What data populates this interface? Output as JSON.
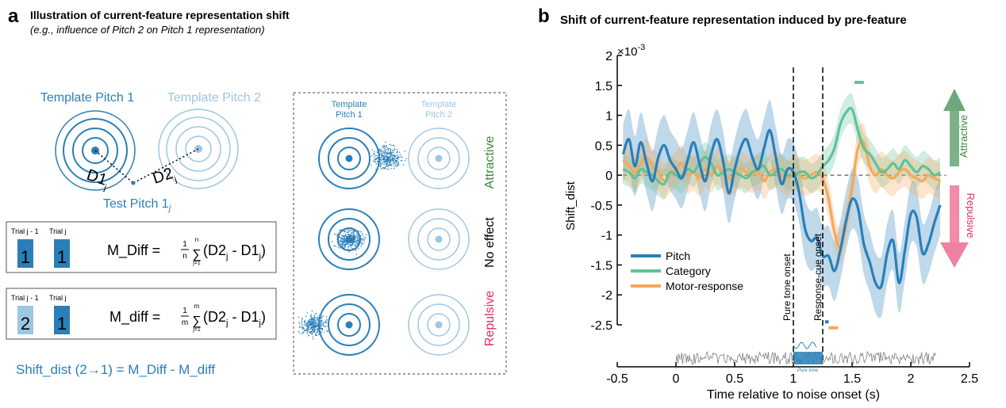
{
  "panel_a": {
    "letter": "a",
    "title": "Illustration of current-feature representation shift",
    "subtitle": "(e.g., influence of Pitch 2 on Pitch 1 representation)",
    "template_pitch_1": "Template Pitch 1",
    "template_pitch_2": "Template Pitch 2",
    "d1_label": "D1",
    "d1_sub": "j",
    "d2_label": "D2",
    "d2_sub": "j",
    "test_pitch_label": "Test Pitch 1",
    "test_pitch_sub": "j",
    "box1": {
      "trial_prev": "Trial j - 1",
      "trial_curr": "Trial j",
      "prev_value": "1",
      "curr_value": "1",
      "lhs": "M_Diff =",
      "frac_num": "1",
      "frac_den": "n",
      "sum_top": "n",
      "sum_bottom": "j=1",
      "body": "(D2",
      "sub_a": "j",
      "minus": " - D1",
      "sub_b": "j",
      "close": ")"
    },
    "box2": {
      "trial_prev": "Trial j - 1",
      "trial_curr": "Trial j",
      "prev_value": "2",
      "curr_value": "1",
      "lhs": "M_diff =",
      "frac_num": "1",
      "frac_den": "m",
      "sum_top": "m",
      "sum_bottom": "j=1",
      "body": "(D2",
      "sub_a": "j",
      "minus": " - D1",
      "sub_b": "j",
      "close": ")"
    },
    "shift_formula": "Shift_dist (2→1) = M_Diff - M_diff",
    "dashed_box": {
      "template_pitch_1": [
        "Template",
        "Pitch 1"
      ],
      "template_pitch_2": [
        "Template",
        "Pitch 2"
      ],
      "attractive": "Attractive",
      "no_effect": "No effect",
      "repulsive": "Repulsive"
    }
  },
  "panel_b": {
    "letter": "b",
    "title": "Shift of current-feature representation induced by pre-feature",
    "scale_label": "×10",
    "scale_exp": "-3",
    "attractive": "Attractive",
    "repulsive": "Repulsive",
    "pure_tone_onset": "Pure tone onset",
    "response_cue_onset": "Response-cue onset",
    "pure_tone_small": "Pure tone"
  },
  "colors": {
    "pitch": "#2a7fb8",
    "pitch_light": "#9cc7e3",
    "category": "#5fc29a",
    "motor": "#f6a85a",
    "attractive": "#3a8a3a",
    "repulsive": "#e0305a",
    "noise": "#808080"
  },
  "chart_data": {
    "type": "line",
    "title": "Shift of current-feature representation induced by pre-feature",
    "xlabel": "Time relative to noise onset (s)",
    "ylabel": "Shift_dist",
    "xlim": [
      -0.5,
      2.5
    ],
    "ylim": [
      -2.5,
      2.0
    ],
    "y_scale_note": "×10^-3",
    "x_ticks": [
      "-0.5",
      "0",
      "0.5",
      "1",
      "1.5",
      "2",
      "2.5"
    ],
    "y_ticks": [
      "2",
      "1.5",
      "1",
      "0.5",
      "0",
      "-0.5",
      "-1",
      "-1.5",
      "-2",
      "-2.5"
    ],
    "grid": false,
    "legend_position": "bottom-left",
    "vlines": [
      1.0,
      1.25
    ],
    "x": [
      -0.45,
      -0.4,
      -0.35,
      -0.3,
      -0.25,
      -0.2,
      -0.15,
      -0.1,
      -0.05,
      0,
      0.05,
      0.1,
      0.15,
      0.2,
      0.25,
      0.3,
      0.35,
      0.4,
      0.45,
      0.5,
      0.55,
      0.6,
      0.65,
      0.7,
      0.75,
      0.8,
      0.85,
      0.9,
      0.95,
      1.0,
      1.05,
      1.1,
      1.15,
      1.2,
      1.25,
      1.3,
      1.35,
      1.4,
      1.45,
      1.5,
      1.55,
      1.6,
      1.65,
      1.7,
      1.75,
      1.8,
      1.85,
      1.9,
      1.95,
      2.0,
      2.05,
      2.1,
      2.15,
      2.2,
      2.25
    ],
    "series": [
      {
        "name": "Pitch",
        "color": "#2a7fb8",
        "values": [
          0.35,
          0.6,
          0.15,
          0.55,
          0.2,
          -0.1,
          0.3,
          0.5,
          0.25,
          0.1,
          -0.05,
          0.25,
          0.55,
          0.2,
          -0.1,
          0.35,
          0.6,
          0.25,
          -0.3,
          0.1,
          0.45,
          0.6,
          0.3,
          0.1,
          0.45,
          0.75,
          0.3,
          -0.15,
          0.1,
          0.05,
          -0.3,
          -0.9,
          -1.1,
          -1.05,
          -1.35,
          -1.35,
          -1.6,
          -1.25,
          -0.75,
          -0.4,
          -0.55,
          -1.15,
          -1.45,
          -1.8,
          -1.85,
          -1.3,
          -1.1,
          -1.8,
          -1.25,
          -0.65,
          -0.7,
          -1.3,
          -1.15,
          -0.8,
          -0.5
        ],
        "ci_half_width": 0.5
      },
      {
        "name": "Category",
        "color": "#5fc29a",
        "values": [
          0.1,
          0.05,
          -0.05,
          0.1,
          0.05,
          0.0,
          -0.1,
          -0.15,
          0.05,
          0.0,
          -0.05,
          0.1,
          0.05,
          0.2,
          0.3,
          0.2,
          0.0,
          0.05,
          0.1,
          0.05,
          0.0,
          -0.05,
          0.05,
          0.1,
          0.15,
          0.0,
          0.05,
          0.1,
          0.0,
          0.0,
          0.05,
          0.05,
          -0.05,
          0.0,
          0.15,
          0.25,
          0.45,
          0.85,
          1.05,
          1.1,
          0.75,
          0.45,
          0.35,
          0.2,
          0.05,
          0.1,
          0.2,
          0.1,
          0.25,
          0.15,
          0.05,
          0.15,
          0.1,
          0.0,
          0.05
        ],
        "ci_half_width": 0.25
      },
      {
        "name": "Motor-response",
        "color": "#f6a85a",
        "values": [
          0.25,
          0.15,
          0.05,
          0.2,
          0.3,
          0.15,
          0.05,
          -0.1,
          0.0,
          0.1,
          0.2,
          0.0,
          0.05,
          -0.05,
          0.1,
          0.0,
          0.15,
          0.05,
          -0.05,
          0.0,
          0.1,
          0.05,
          0.0,
          0.05,
          -0.1,
          0.05,
          0.1,
          0.0,
          -0.05,
          0.05,
          0.0,
          -0.05,
          0.0,
          0.05,
          -0.05,
          -0.4,
          -0.95,
          -1.2,
          -0.8,
          -0.2,
          0.45,
          0.55,
          0.15,
          0.0,
          0.1,
          0.0,
          -0.05,
          0.05,
          0.1,
          0.0,
          -0.05,
          -0.1,
          0.0,
          -0.05,
          -0.1
        ],
        "ci_half_width": 0.3
      }
    ],
    "significance_bars": [
      {
        "series": "Category",
        "x_start": 1.52,
        "x_end": 1.6,
        "y": 1.55
      },
      {
        "series": "Pitch",
        "x_start": 1.27,
        "x_end": 1.3,
        "y": -2.45
      },
      {
        "series": "Motor-response",
        "x_start": 1.3,
        "x_end": 1.38,
        "y": -2.55
      }
    ]
  }
}
